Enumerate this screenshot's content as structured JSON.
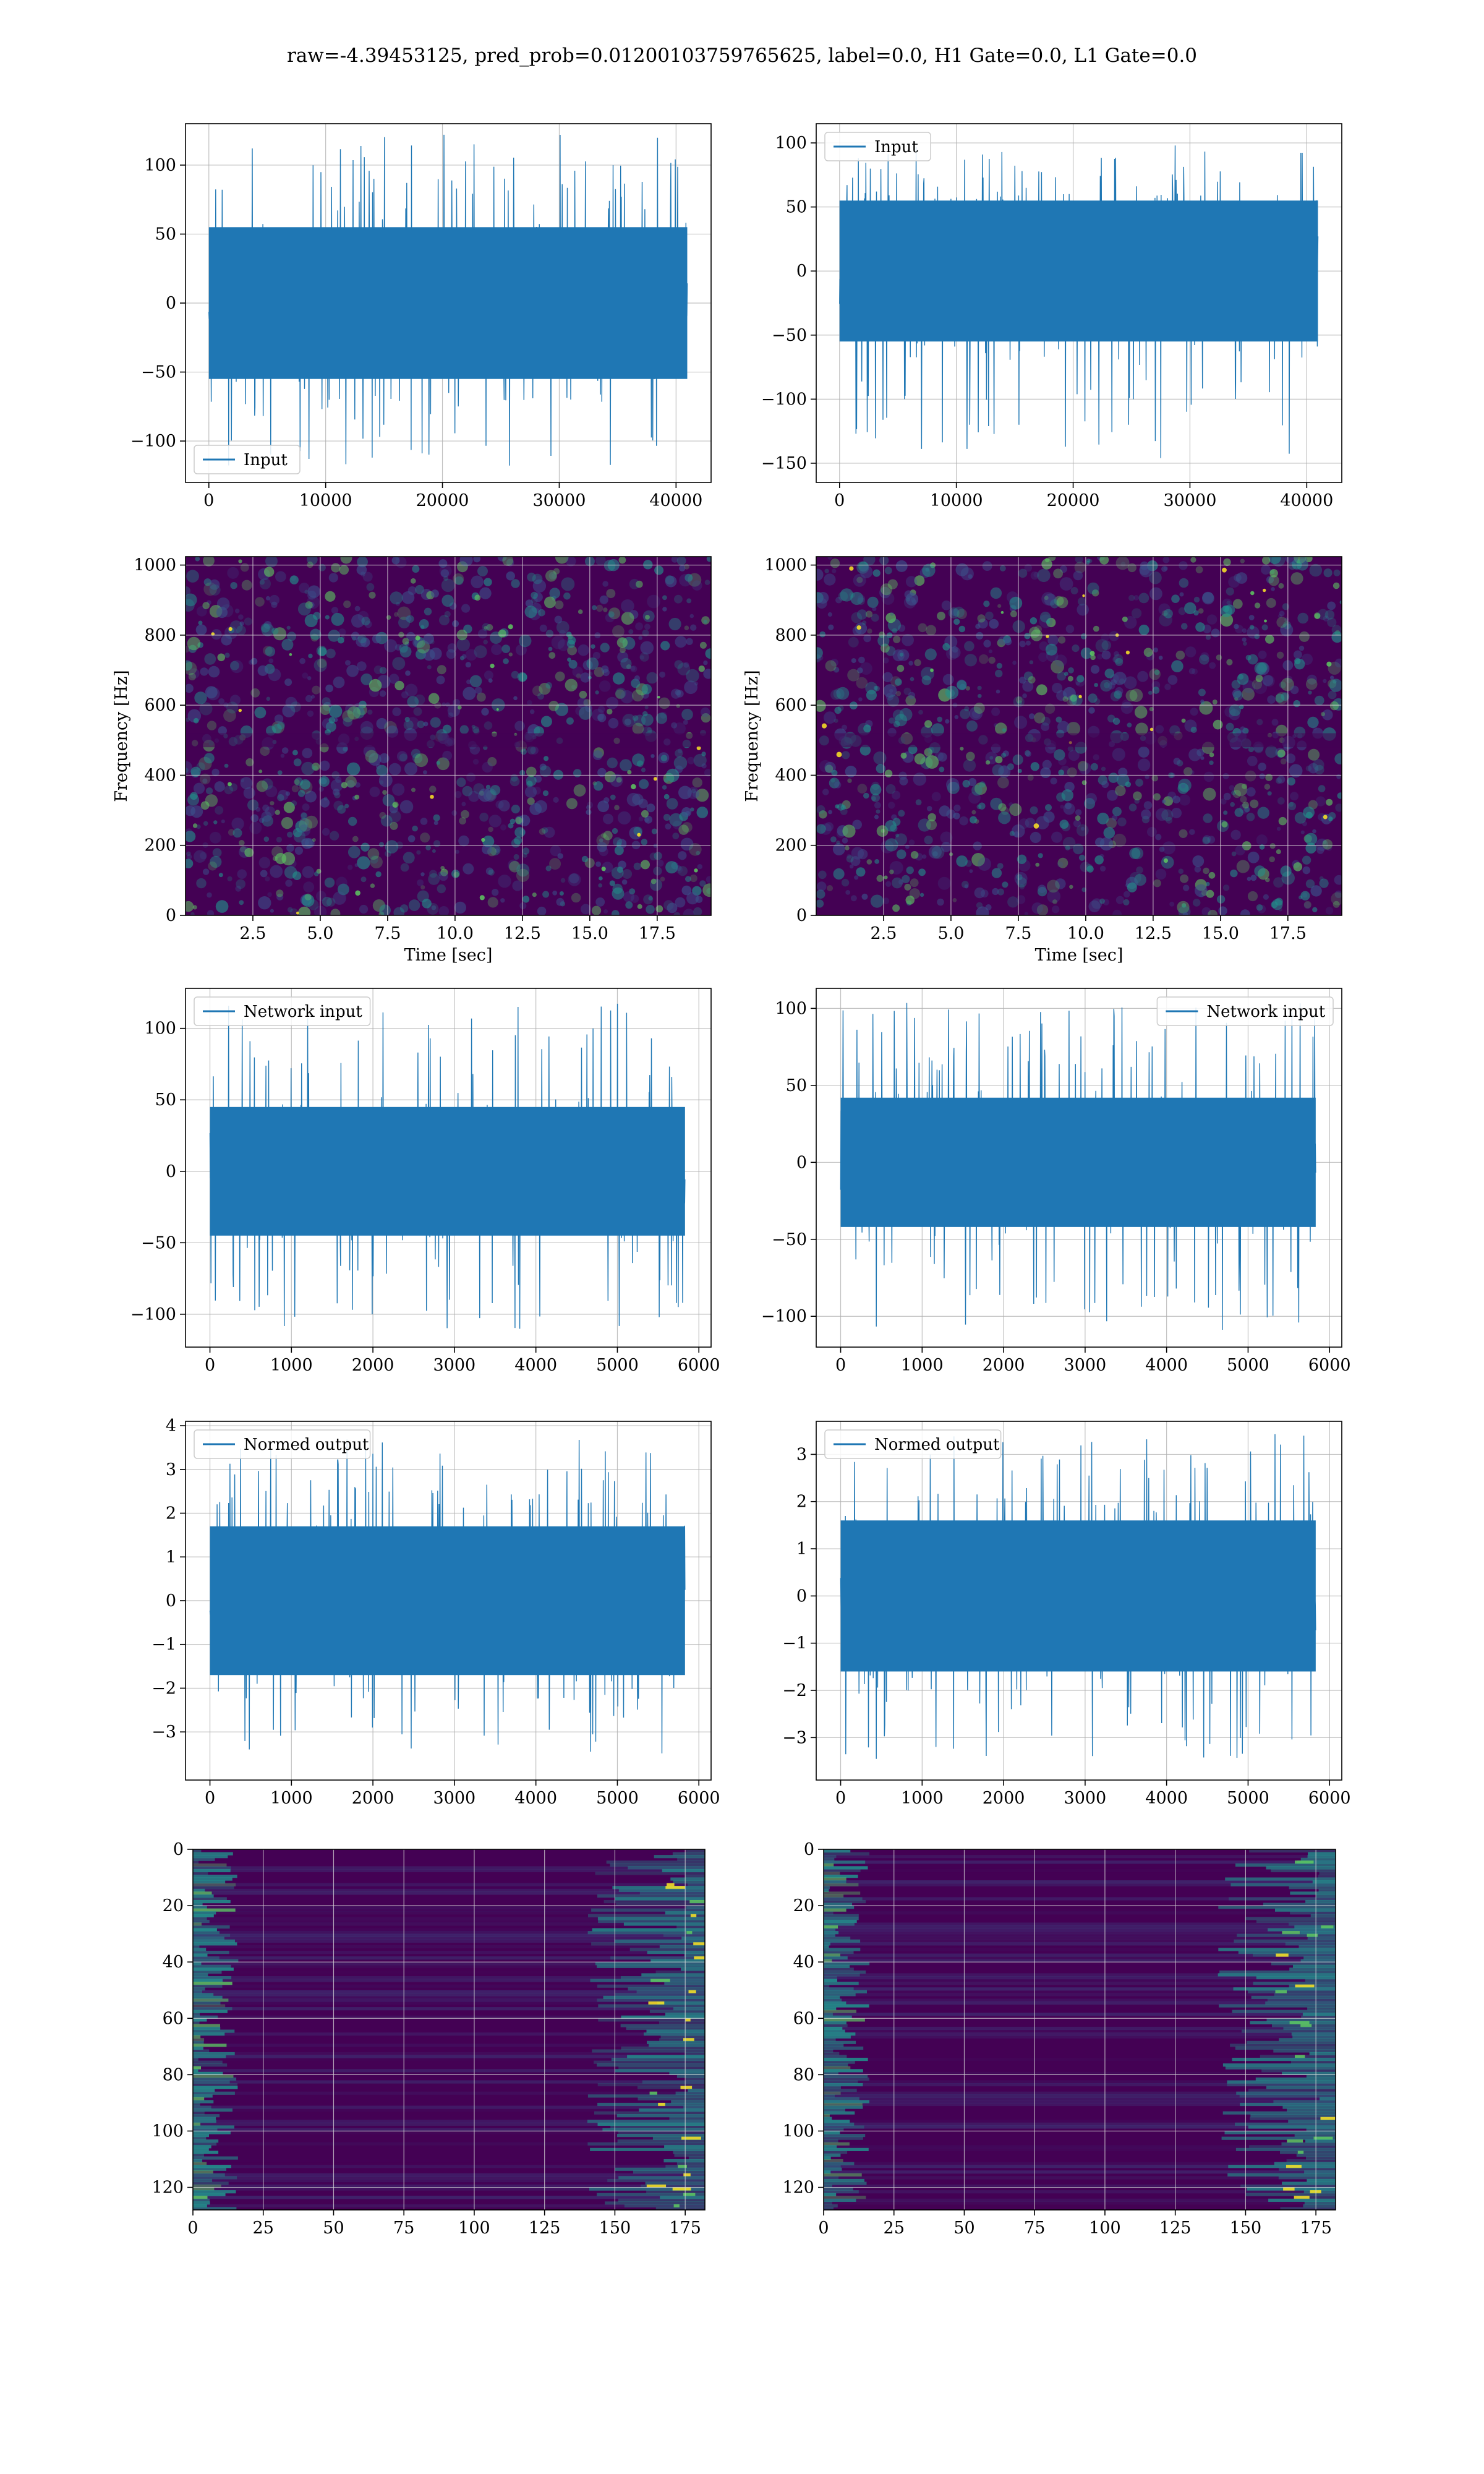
{
  "figure": {
    "suptitle": "raw=-4.39453125, pred_prob=0.01200103759765625, label=0.0, H1 Gate=0.0, L1 Gate=0.0"
  },
  "colors": {
    "series": "#1f77b4",
    "grid": "#b0b0b0",
    "viridis_dark": "#440154",
    "viridis_mid": "#3b528b",
    "viridis_teal": "#21918c",
    "viridis_green": "#5ec962",
    "viridis_yellow": "#fde725"
  },
  "chart_data": [
    {
      "id": "input_left",
      "type": "line",
      "legend": [
        "Input"
      ],
      "legend_loc": "lower-left",
      "xlim": [
        -2000,
        43000
      ],
      "ylim": [
        -130,
        130
      ],
      "xticks": [
        0,
        10000,
        20000,
        30000,
        40000
      ],
      "xtick_labels": [
        "0",
        "10000",
        "20000",
        "30000",
        "40000"
      ],
      "yticks": [
        -100,
        -50,
        0,
        50,
        100
      ],
      "ytick_labels": [
        "−100",
        "−50",
        "0",
        "50",
        "100"
      ],
      "signal": {
        "x_range": [
          0,
          40960
        ],
        "band": 55,
        "peak_max": 122,
        "peak_min": -118,
        "seed": 11
      }
    },
    {
      "id": "input_right",
      "type": "line",
      "legend": [
        "Input"
      ],
      "legend_loc": "upper-left",
      "xlim": [
        -2000,
        43000
      ],
      "ylim": [
        -165,
        115
      ],
      "xticks": [
        0,
        10000,
        20000,
        30000,
        40000
      ],
      "xtick_labels": [
        "0",
        "10000",
        "20000",
        "30000",
        "40000"
      ],
      "yticks": [
        -150,
        -100,
        -50,
        0,
        50,
        100
      ],
      "ytick_labels": [
        "−150",
        "−100",
        "−50",
        "0",
        "50",
        "100"
      ],
      "signal": {
        "x_range": [
          0,
          40960
        ],
        "band": 55,
        "peak_max": 98,
        "peak_min": -148,
        "seed": 23
      }
    },
    {
      "id": "spectrogram_left",
      "type": "heatmap",
      "xlim": [
        0,
        19.5
      ],
      "ylim": [
        0,
        1024
      ],
      "xlabel": "Time [sec]",
      "ylabel": "Frequency [Hz]",
      "xticks": [
        2.5,
        5.0,
        7.5,
        10.0,
        12.5,
        15.0,
        17.5
      ],
      "xtick_labels": [
        "2.5",
        "5.0",
        "7.5",
        "10.0",
        "12.5",
        "15.0",
        "17.5"
      ],
      "yticks": [
        0,
        200,
        400,
        600,
        800,
        1000
      ],
      "ytick_labels": [
        "0",
        "200",
        "400",
        "600",
        "800",
        "1000"
      ],
      "texture": {
        "kind": "speckle",
        "seed": 31
      }
    },
    {
      "id": "spectrogram_right",
      "type": "heatmap",
      "xlim": [
        0,
        19.5
      ],
      "ylim": [
        0,
        1024
      ],
      "xlabel": "Time [sec]",
      "ylabel": "Frequency [Hz]",
      "xticks": [
        2.5,
        5.0,
        7.5,
        10.0,
        12.5,
        15.0,
        17.5
      ],
      "xtick_labels": [
        "2.5",
        "5.0",
        "7.5",
        "10.0",
        "12.5",
        "15.0",
        "17.5"
      ],
      "yticks": [
        0,
        200,
        400,
        600,
        800,
        1000
      ],
      "ytick_labels": [
        "0",
        "200",
        "400",
        "600",
        "800",
        "1000"
      ],
      "texture": {
        "kind": "speckle",
        "seed": 47
      }
    },
    {
      "id": "network_input_left",
      "type": "line",
      "legend": [
        "Network input"
      ],
      "legend_loc": "upper-left",
      "xlim": [
        -300,
        6150
      ],
      "ylim": [
        -123,
        128
      ],
      "xticks": [
        0,
        1000,
        2000,
        3000,
        4000,
        5000,
        6000
      ],
      "xtick_labels": [
        "0",
        "1000",
        "2000",
        "3000",
        "4000",
        "5000",
        "6000"
      ],
      "yticks": [
        -100,
        -50,
        0,
        50,
        100
      ],
      "ytick_labels": [
        "−100",
        "−50",
        "0",
        "50",
        "100"
      ],
      "signal": {
        "x_range": [
          0,
          5830
        ],
        "band": 45,
        "peak_max": 120,
        "peak_min": -112,
        "seed": 53
      }
    },
    {
      "id": "network_input_right",
      "type": "line",
      "legend": [
        "Network input"
      ],
      "legend_loc": "upper-right",
      "xlim": [
        -300,
        6150
      ],
      "ylim": [
        -120,
        113
      ],
      "xticks": [
        0,
        1000,
        2000,
        3000,
        4000,
        5000,
        6000
      ],
      "xtick_labels": [
        "0",
        "1000",
        "2000",
        "3000",
        "4000",
        "5000",
        "6000"
      ],
      "yticks": [
        -100,
        -50,
        0,
        50,
        100
      ],
      "ytick_labels": [
        "−100",
        "−50",
        "0",
        "50",
        "100"
      ],
      "signal": {
        "x_range": [
          0,
          5830
        ],
        "band": 42,
        "peak_max": 105,
        "peak_min": -110,
        "seed": 67
      }
    },
    {
      "id": "normed_output_left",
      "type": "line",
      "legend": [
        "Normed output"
      ],
      "legend_loc": "upper-left",
      "xlim": [
        -300,
        6150
      ],
      "ylim": [
        -4.1,
        4.1
      ],
      "xticks": [
        0,
        1000,
        2000,
        3000,
        4000,
        5000,
        6000
      ],
      "xtick_labels": [
        "0",
        "1000",
        "2000",
        "3000",
        "4000",
        "5000",
        "6000"
      ],
      "yticks": [
        -3,
        -2,
        -1,
        0,
        1,
        2,
        3,
        4
      ],
      "ytick_labels": [
        "−3",
        "−2",
        "−1",
        "0",
        "1",
        "2",
        "3",
        "4"
      ],
      "signal": {
        "x_range": [
          0,
          5830
        ],
        "band": 1.7,
        "peak_max": 3.75,
        "peak_min": -3.6,
        "seed": 71
      }
    },
    {
      "id": "normed_output_right",
      "type": "line",
      "legend": [
        "Normed output"
      ],
      "legend_loc": "upper-left",
      "xlim": [
        -300,
        6150
      ],
      "ylim": [
        -3.9,
        3.7
      ],
      "xticks": [
        0,
        1000,
        2000,
        3000,
        4000,
        5000,
        6000
      ],
      "xtick_labels": [
        "0",
        "1000",
        "2000",
        "3000",
        "4000",
        "5000",
        "6000"
      ],
      "yticks": [
        -3,
        -2,
        -1,
        0,
        1,
        2,
        3
      ],
      "ytick_labels": [
        "−3",
        "−2",
        "−1",
        "0",
        "1",
        "2",
        "3"
      ],
      "signal": {
        "x_range": [
          0,
          5830
        ],
        "band": 1.6,
        "peak_max": 3.45,
        "peak_min": -3.5,
        "seed": 83
      }
    },
    {
      "id": "feature_map_left",
      "type": "heatmap",
      "xlim": [
        0,
        182
      ],
      "ylim": [
        128,
        0
      ],
      "xticks": [
        0,
        25,
        50,
        75,
        100,
        125,
        150,
        175
      ],
      "xtick_labels": [
        "0",
        "25",
        "50",
        "75",
        "100",
        "125",
        "150",
        "175"
      ],
      "yticks": [
        0,
        20,
        40,
        60,
        80,
        100,
        120
      ],
      "ytick_labels": [
        "0",
        "20",
        "40",
        "60",
        "80",
        "100",
        "120"
      ],
      "texture": {
        "kind": "rows",
        "seed": 97
      }
    },
    {
      "id": "feature_map_right",
      "type": "heatmap",
      "xlim": [
        0,
        182
      ],
      "ylim": [
        128,
        0
      ],
      "xticks": [
        0,
        25,
        50,
        75,
        100,
        125,
        150,
        175
      ],
      "xtick_labels": [
        "0",
        "25",
        "50",
        "75",
        "100",
        "125",
        "150",
        "175"
      ],
      "yticks": [
        0,
        20,
        40,
        60,
        80,
        100,
        120
      ],
      "ytick_labels": [
        "0",
        "20",
        "40",
        "60",
        "80",
        "100",
        "120"
      ],
      "texture": {
        "kind": "rows",
        "seed": 113
      }
    }
  ]
}
